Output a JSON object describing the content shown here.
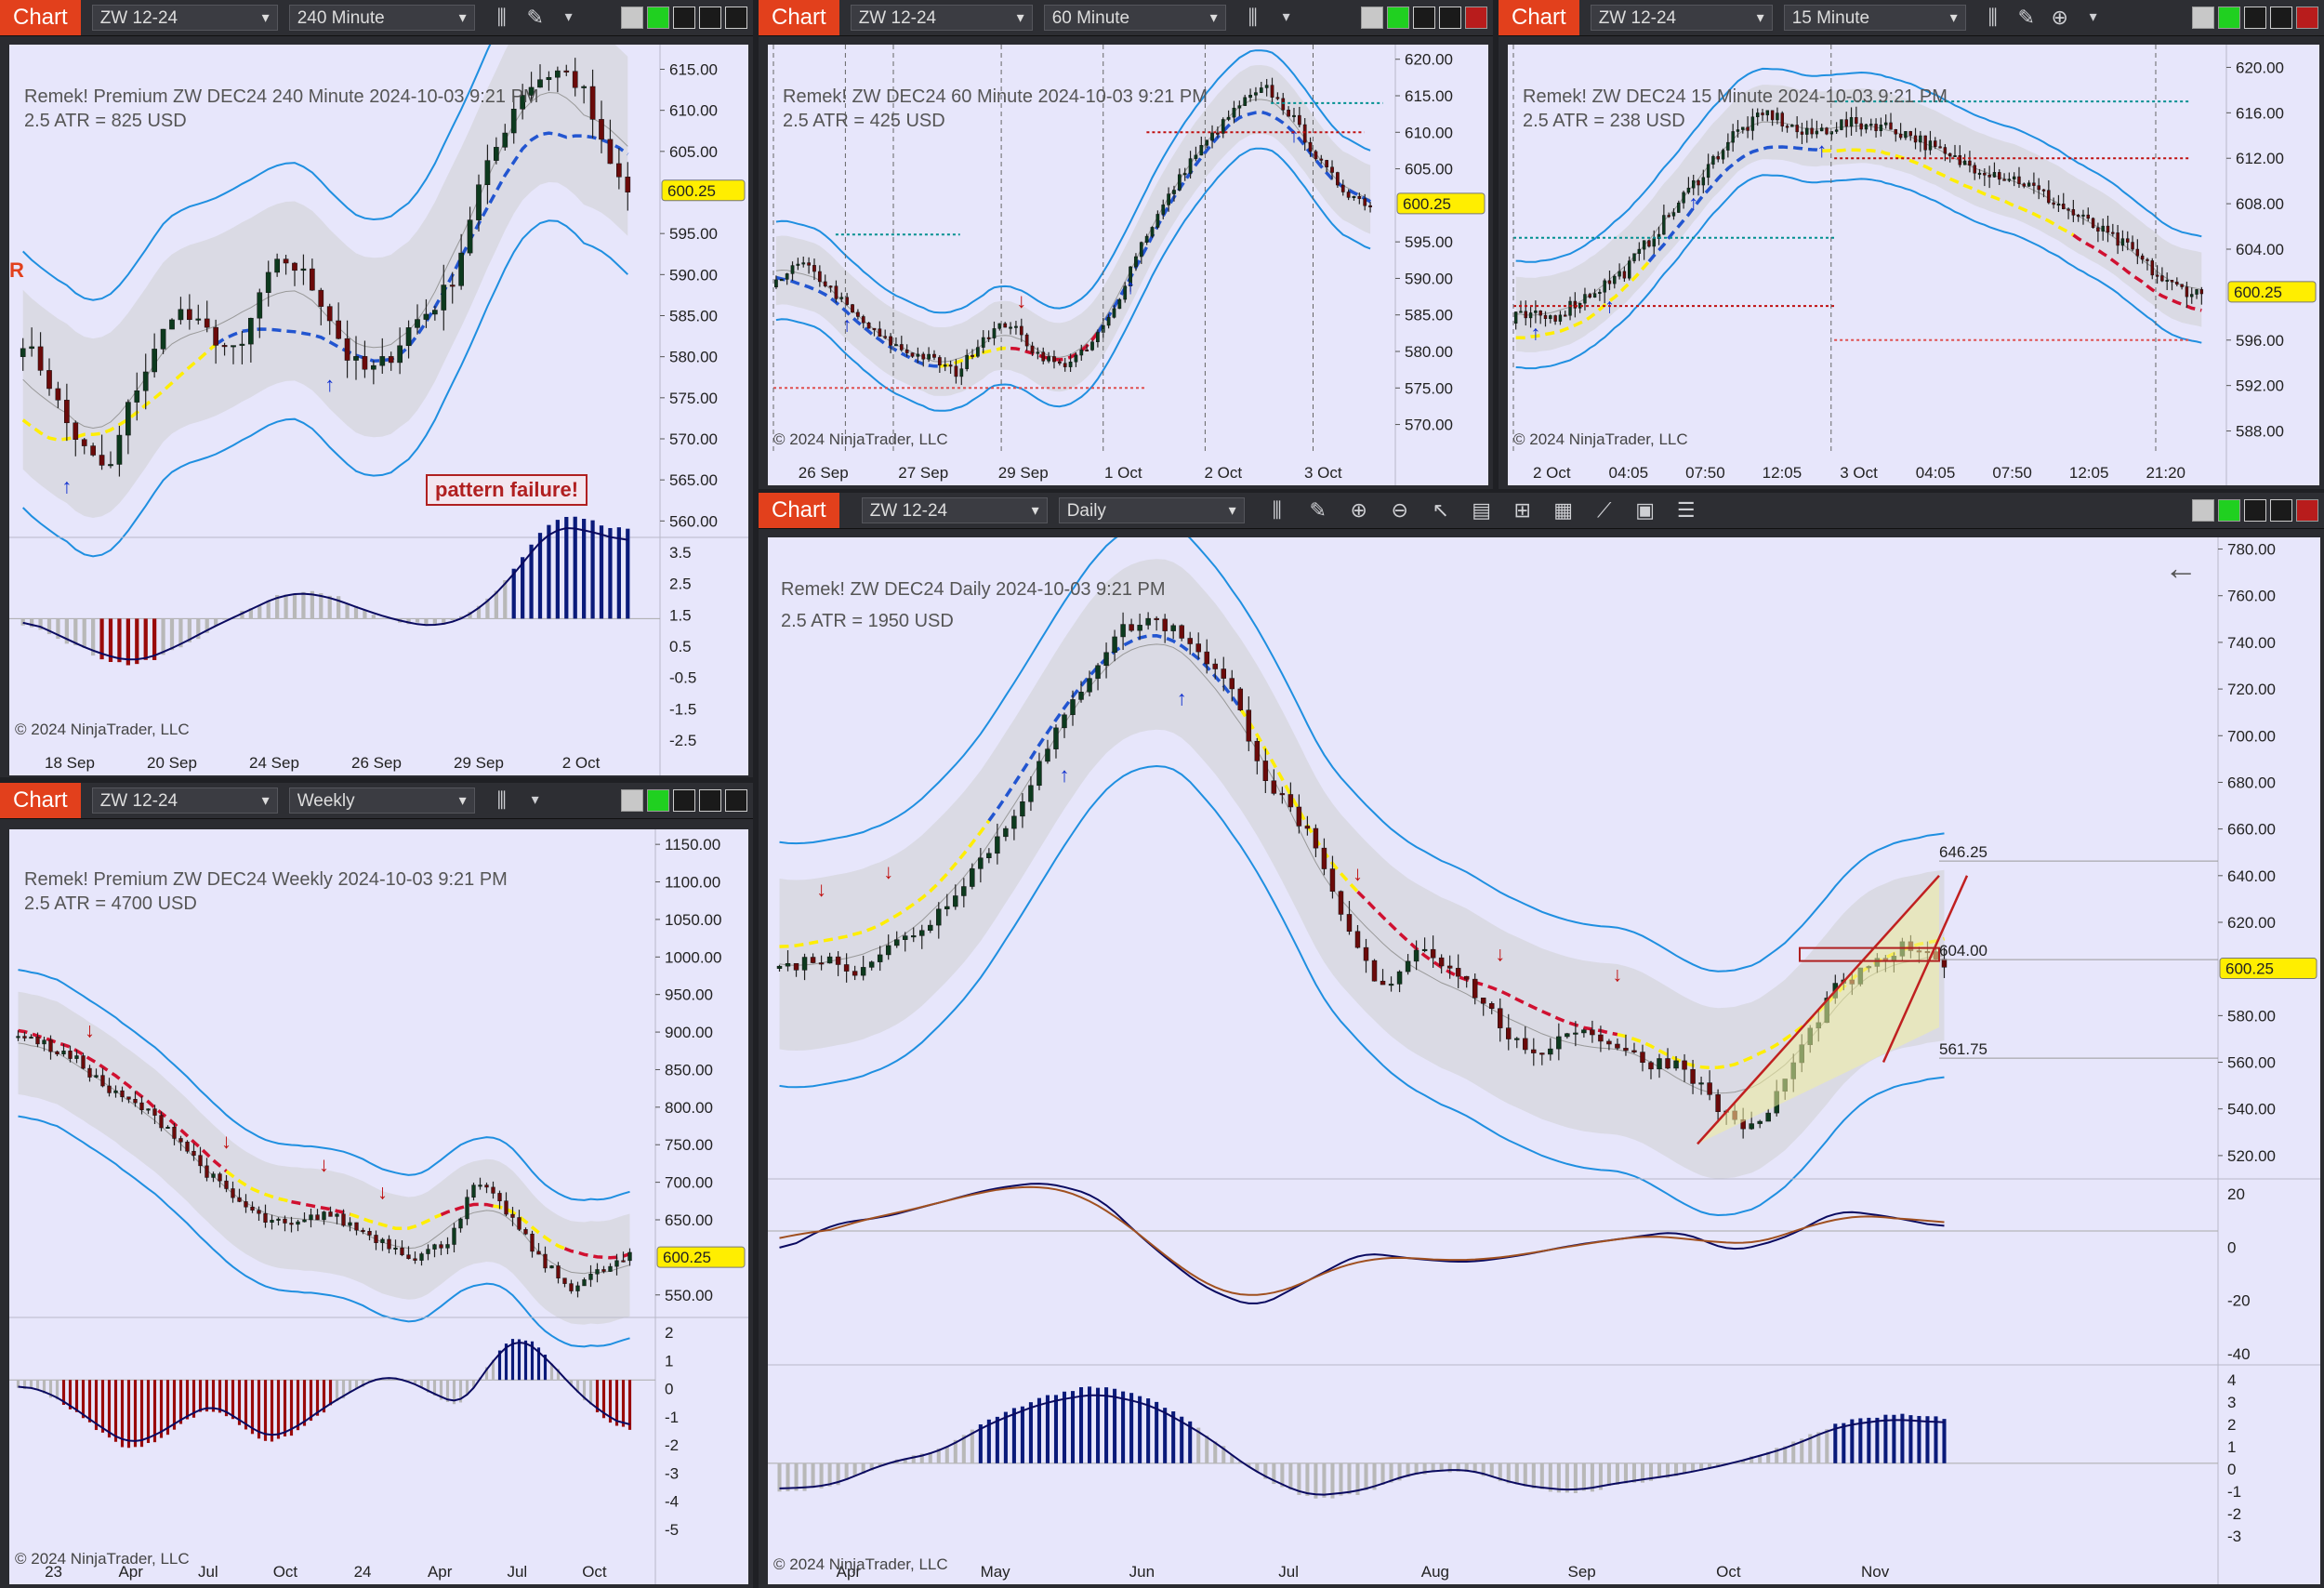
{
  "tab_label": "Chart",
  "symbol": "ZW 12-24",
  "copyright": "© 2024 NinjaTrader, LLC",
  "last_price": "600.25",
  "colors": {
    "accent": "#e2401c",
    "bg": "#e7e6fb",
    "upper_band": "#1f8fe0",
    "dash_blue": "#2255d0",
    "dash_red": "#d01030",
    "dash_yellow": "#ffee00",
    "bull_bar": "#0d3a1e",
    "bear_bar": "#6b0a0a",
    "hist_blue": "#0a1a7a",
    "hist_red": "#9a0a0a",
    "hist_gray": "#b8b8b8"
  },
  "panels": [
    {
      "id": "p240",
      "timeframe": "240 Minute",
      "title": "Remek!  Premium  ZW DEC24  240 Minute  2024-10-03 9:21 PM",
      "atr": "2.5 ATR = 825 USD",
      "annotation": "pattern failure!",
      "side_label": "R",
      "price_ticks": [
        "615.00",
        "610.00",
        "605.00",
        "600.25",
        "595.00",
        "590.00",
        "585.00",
        "580.00",
        "575.00",
        "570.00",
        "565.00",
        "560.00"
      ],
      "osc_ticks": [
        "3.5",
        "2.5",
        "1.5",
        "0.5",
        "-0.5",
        "-1.5",
        "-2.5"
      ],
      "x_labels": [
        "18 Sep",
        "20 Sep",
        "24 Sep",
        "26 Sep",
        "29 Sep",
        "2 Oct"
      ]
    },
    {
      "id": "p60",
      "timeframe": "60 Minute",
      "title": "Remek!  ZW DEC24  60 Minute  2024-10-03 9:21 PM",
      "atr": "2.5 ATR = 425 USD",
      "price_ticks": [
        "620.00",
        "615.00",
        "610.00",
        "605.00",
        "600.25",
        "595.00",
        "590.00",
        "585.00",
        "580.00",
        "575.00",
        "570.00"
      ],
      "x_labels": [
        "26 Sep",
        "27 Sep",
        "29 Sep",
        "1 Oct",
        "2 Oct",
        "3 Oct"
      ]
    },
    {
      "id": "p15",
      "timeframe": "15 Minute",
      "title": "Remek!  ZW DEC24  15 Minute  2024-10-03 9:21 PM",
      "atr": "2.5 ATR = 238 USD",
      "price_ticks": [
        "620.00",
        "616.00",
        "612.00",
        "608.00",
        "604.00",
        "600.25",
        "596.00",
        "592.00",
        "588.00"
      ],
      "x_labels": [
        "2 Oct",
        "04:05",
        "07:50",
        "12:05",
        "3 Oct",
        "04:05",
        "07:50",
        "12:05",
        "21:20"
      ]
    },
    {
      "id": "pw",
      "timeframe": "Weekly",
      "title": "Remek!  Premium  ZW DEC24  Weekly  2024-10-03 9:21 PM",
      "atr": "2.5 ATR = 4700 USD",
      "price_ticks": [
        "1150.00",
        "1100.00",
        "1050.00",
        "1000.00",
        "950.00",
        "900.00",
        "850.00",
        "800.00",
        "750.00",
        "700.00",
        "650.00",
        "600.25",
        "550.00"
      ],
      "osc_ticks": [
        "2",
        "1",
        "0",
        "-1",
        "-2",
        "-3",
        "-4",
        "-5"
      ],
      "x_labels": [
        "23",
        "Apr",
        "Jul",
        "Oct",
        "24",
        "Apr",
        "Jul",
        "Oct"
      ]
    },
    {
      "id": "pd",
      "timeframe": "Daily",
      "title": "Remek!  ZW DEC24  Daily  2024-10-03 9:21 PM",
      "atr": "2.5 ATR = 1950 USD",
      "price_ticks": [
        "780.00",
        "760.00",
        "740.00",
        "720.00",
        "700.00",
        "680.00",
        "660.00",
        "640.00",
        "620.00",
        "600.25",
        "580.00",
        "560.00",
        "540.00",
        "520.00"
      ],
      "levels": [
        "646.25",
        "604.00",
        "561.75"
      ],
      "osc1_ticks": [
        "20",
        "0",
        "-20",
        "-40"
      ],
      "osc2_ticks": [
        "4",
        "3",
        "2",
        "1",
        "0",
        "-1",
        "-2",
        "-3"
      ],
      "x_labels": [
        "Apr",
        "May",
        "Jun",
        "Jul",
        "Aug",
        "Sep",
        "Oct",
        "Nov"
      ]
    }
  ],
  "chart_data": [
    {
      "type": "line",
      "name_ref": "240 Minute",
      "ylim": [
        558,
        618
      ],
      "y_close_approx": [
        582,
        578,
        572,
        568,
        566,
        575,
        580,
        586,
        584,
        582,
        580,
        588,
        592,
        590,
        586,
        580,
        578,
        580,
        584,
        586,
        590,
        600,
        606,
        612,
        614,
        615,
        612,
        604,
        600
      ]
    },
    {
      "type": "line",
      "name_ref": "60 Minute",
      "ylim": [
        566,
        622
      ],
      "y_close_approx": [
        590,
        592,
        589,
        585,
        582,
        580,
        579,
        577,
        582,
        584,
        580,
        578,
        580,
        585,
        594,
        600,
        606,
        610,
        614,
        616,
        612,
        606,
        602,
        600
      ]
    },
    {
      "type": "line",
      "name_ref": "15 Minute",
      "ylim": [
        586,
        622
      ],
      "y_close_approx": [
        598,
        598,
        600,
        602,
        606,
        610,
        614,
        616,
        614,
        615,
        615,
        614,
        612,
        611,
        610,
        608,
        606,
        604,
        601,
        600
      ]
    },
    {
      "type": "line",
      "name_ref": "Weekly",
      "ylim": [
        520,
        1170
      ],
      "y_close_approx": [
        900,
        880,
        860,
        820,
        800,
        770,
        720,
        680,
        650,
        640,
        660,
        640,
        620,
        600,
        620,
        700,
        660,
        600,
        560,
        580,
        600
      ]
    },
    {
      "type": "line",
      "name_ref": "Daily",
      "ylim": [
        510,
        785
      ],
      "y_close_approx": [
        600,
        605,
        600,
        610,
        620,
        640,
        660,
        690,
        720,
        745,
        750,
        740,
        720,
        680,
        660,
        620,
        590,
        610,
        600,
        580,
        560,
        575,
        570,
        560,
        560,
        540,
        530,
        560,
        590,
        600,
        610,
        600
      ]
    }
  ]
}
